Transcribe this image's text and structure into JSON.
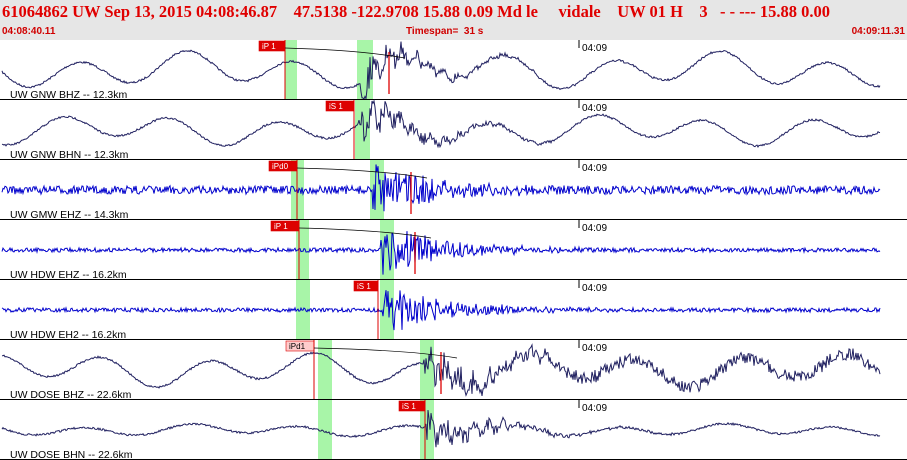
{
  "header": {
    "title": "61064862 UW Sep 13, 2015 04:08:46.87    47.5138 -122.9708 15.88 0.09 Md le     vidale    UW 01 H    3   - - --- 15.88 0.00",
    "start_time": "04:08:40.11",
    "timespan": "Timespan=  31 s",
    "end_time": "04:09:11.31"
  },
  "colors": {
    "header_bg": "#e6e6e6",
    "header_text": "#e00000",
    "trace_short_period": "#0000cc",
    "trace_broadband": "#202060",
    "pick_highlight": "#a8f5a8",
    "pick_label_bg": "#dd0000",
    "pick_label_bg_light": "#ffcccc",
    "pick_line": "#dd0000",
    "divider": "#000000"
  },
  "channels": [
    {
      "label": "UW GNW BHZ -- 12.3km",
      "pick": "iP 1",
      "time_marker": "04:09",
      "kind": "broadband"
    },
    {
      "label": "UW GNW BHN -- 12.3km",
      "pick": "iS 1",
      "time_marker": "04:09",
      "kind": "broadband"
    },
    {
      "label": "UW GMW EHZ -- 14.3km",
      "pick": "iPd0",
      "time_marker": "04:09",
      "kind": "short-period"
    },
    {
      "label": "UW HDW EHZ -- 16.2km",
      "pick": "iP 1",
      "time_marker": "04:09",
      "kind": "short-period"
    },
    {
      "label": "UW HDW EH2 -- 16.2km",
      "pick": "iS 1",
      "time_marker": "04:09",
      "kind": "short-period"
    },
    {
      "label": "UW DOSE BHZ -- 22.6km",
      "pick": "iPd1",
      "time_marker": "04:09",
      "kind": "broadband"
    },
    {
      "label": "UW DOSE BHN -- 22.6km",
      "pick": "iS 1",
      "time_marker": "04:09",
      "kind": "broadband"
    }
  ]
}
